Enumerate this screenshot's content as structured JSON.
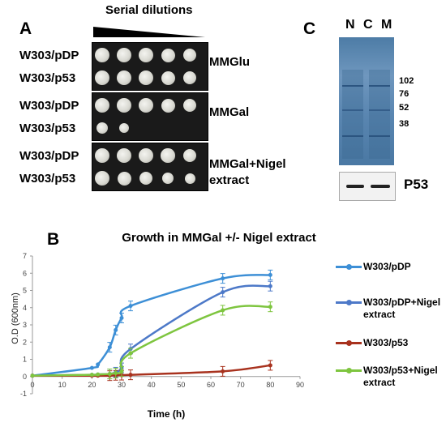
{
  "panelA": {
    "letter": "A",
    "title": "Serial dilutions",
    "groups": [
      {
        "condition_lines": [
          "MMGlu"
        ],
        "rows": [
          {
            "strain": "W303/pDP",
            "spots": [
              1,
              1,
              1,
              0.9,
              0.8
            ]
          },
          {
            "strain": "W303/p53",
            "spots": [
              1,
              1,
              1,
              0.9,
              0.8
            ]
          }
        ]
      },
      {
        "condition_lines": [
          "MMGal"
        ],
        "rows": [
          {
            "strain": "W303/pDP",
            "spots": [
              1,
              1,
              1,
              0.9,
              0.8
            ]
          },
          {
            "strain": "W303/p53",
            "spots": [
              0.6,
              0.4,
              0,
              0,
              0
            ]
          }
        ]
      },
      {
        "condition_lines": [
          "MMGal+Nigel",
          "extract"
        ],
        "rows": [
          {
            "strain": "W303/pDP",
            "spots": [
              1,
              1,
              1,
              0.95,
              0.8
            ]
          },
          {
            "strain": "W303/p53",
            "spots": [
              1,
              0.9,
              0.8,
              0.6,
              0.5
            ]
          }
        ]
      }
    ]
  },
  "panelC": {
    "letter": "C",
    "lanes": [
      "N",
      "C",
      "M"
    ],
    "mw_markers": [
      "102",
      "76",
      "52",
      "38"
    ],
    "blot_label": "P53"
  },
  "panelB": {
    "letter": "B",
    "chart_data": {
      "type": "line",
      "title": "Growth in MMGal +/- Nigel extract",
      "xlabel": "Time (h)",
      "ylabel": "O.D (600nm)",
      "xlim": [
        0,
        90
      ],
      "ylim": [
        -1,
        7
      ],
      "xticks": [
        0,
        10,
        20,
        30,
        40,
        50,
        60,
        70,
        80,
        90
      ],
      "yticks": [
        -1,
        0,
        1,
        2,
        3,
        4,
        5,
        6,
        7
      ],
      "x": [
        0,
        20,
        22,
        26,
        28,
        30,
        33,
        64,
        80
      ],
      "series": [
        {
          "name": "W303/pDP",
          "name_lines": [
            "W303/pDP"
          ],
          "color": "#3d8fd6",
          "values": [
            0.05,
            0.5,
            0.7,
            1.7,
            2.7,
            3.4,
            4.1,
            5.7,
            5.9
          ]
        },
        {
          "name": "W303/pDP+Nigel extract",
          "name_lines": [
            "W303/pDP+Nigel",
            "extract"
          ],
          "color": "#4d79c8",
          "values": [
            0.05,
            0.1,
            0.12,
            0.15,
            0.25,
            0.5,
            1.6,
            4.9,
            5.25
          ]
        },
        {
          "name": "W303/p53",
          "name_lines": [
            "W303/p53"
          ],
          "color": "#a8321e",
          "values": [
            0.05,
            0.05,
            0.05,
            0.05,
            0.07,
            0.08,
            0.1,
            0.3,
            0.65
          ]
        },
        {
          "name": "W303/p53+Nigel extract",
          "name_lines": [
            "W303/p53+Nigel",
            "extract"
          ],
          "color": "#7ec53f",
          "values": [
            0.05,
            0.1,
            0.12,
            0.15,
            0.2,
            0.3,
            1.35,
            3.85,
            4.05
          ]
        }
      ]
    }
  }
}
